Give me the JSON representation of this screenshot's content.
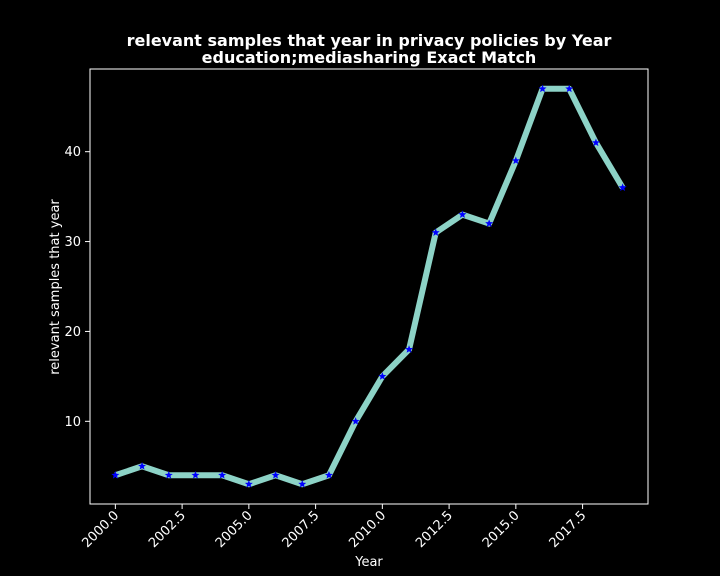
{
  "chart_data": {
    "type": "line",
    "title": "relevant samples that year in privacy policies by Year",
    "subtitle": "education;mediasharing Exact Match",
    "xlabel": "Year",
    "ylabel": "relevant samples that year",
    "xlim": [
      1999.05,
      2019.95
    ],
    "ylim": [
      0.8,
      49.2
    ],
    "x_ticks": [
      "2000.0",
      "2002.5",
      "2005.0",
      "2007.5",
      "2010.0",
      "2012.5",
      "2015.0",
      "2017.5"
    ],
    "y_ticks": [
      "10",
      "20",
      "30",
      "40"
    ],
    "grid": false,
    "colors": {
      "background": "#000000",
      "line": "#8dd3c7",
      "marker": "#0000ff",
      "text": "#ffffff"
    },
    "marker": "star",
    "series": [
      {
        "x": [
          2000,
          2001,
          2002,
          2003,
          2004,
          2005,
          2006,
          2007,
          2008,
          2009,
          2010,
          2011,
          2012,
          2013,
          2014,
          2015,
          2016,
          2017,
          2018,
          2019
        ],
        "values": [
          4,
          5,
          4,
          4,
          4,
          3,
          4,
          3,
          4,
          10,
          15,
          18,
          31,
          33,
          32,
          39,
          47,
          47,
          41,
          36
        ]
      }
    ]
  }
}
